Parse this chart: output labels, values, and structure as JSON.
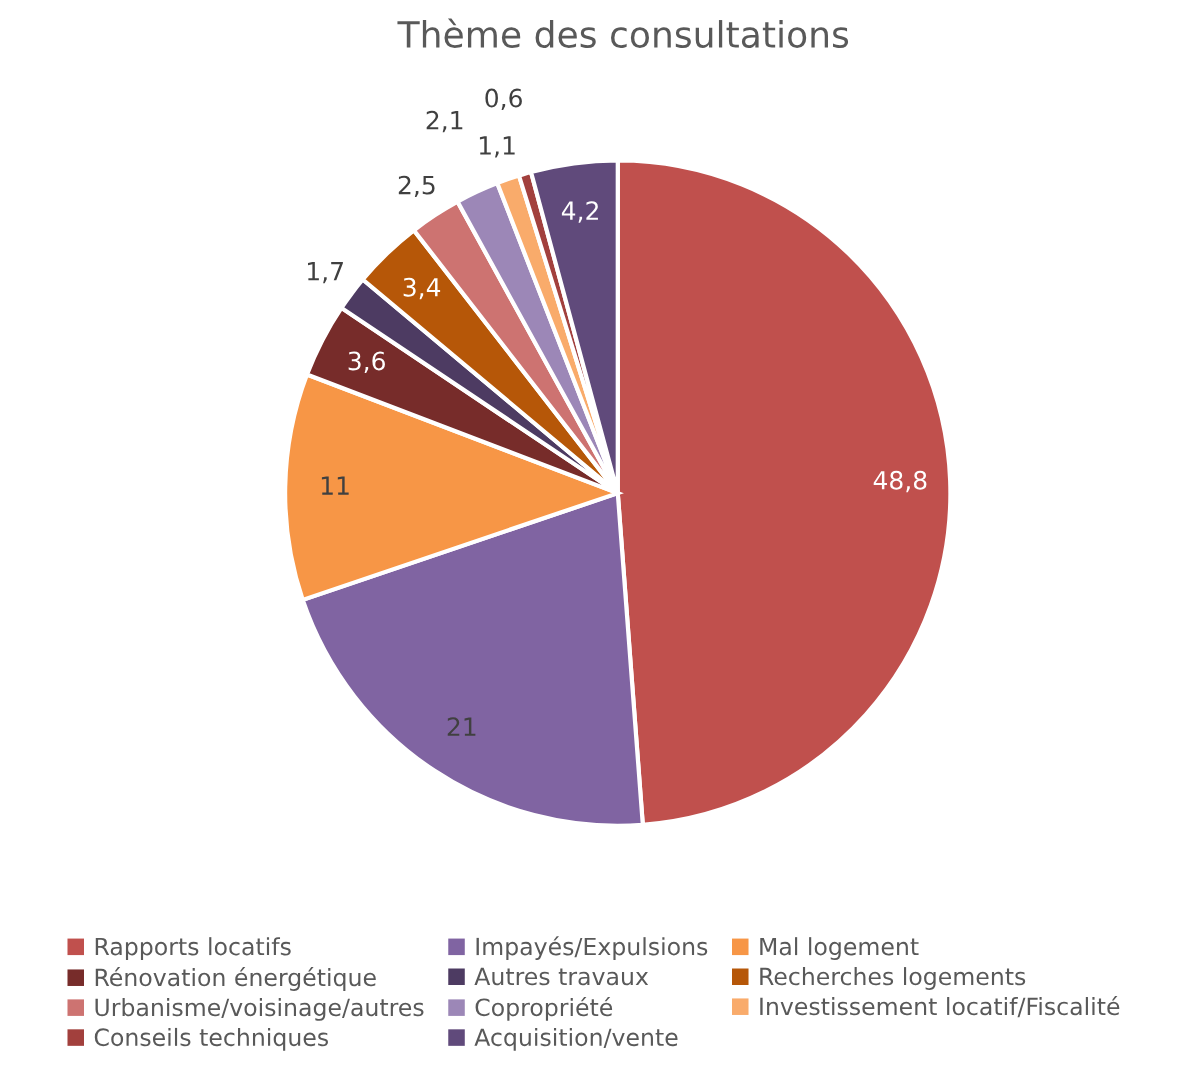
{
  "chart_data": {
    "type": "pie",
    "title": "Thème des consultations",
    "categories": [
      "Rapports locatifs",
      "Impayés/Expulsions",
      "Mal logement",
      "Rénovation énergétique",
      "Autres travaux",
      "Recherches logements",
      "Urbanisme/voisinage/autres",
      "Copropriété",
      "Investissement locatif/Fiscalité",
      "Conseils techniques",
      "Acquisition/vente"
    ],
    "values": [
      48.8,
      21,
      11,
      3.6,
      1.7,
      3.4,
      2.5,
      2.1,
      1.1,
      0.6,
      4.2
    ],
    "colors": [
      "#c0504d",
      "#8064a2",
      "#f79646",
      "#772c2a",
      "#4d3b62",
      "#b65708",
      "#cd7371",
      "#9c87b7",
      "#f9ab6b",
      "#a2403d",
      "#604a7b"
    ],
    "value_labels": [
      "48,8",
      "21",
      "11",
      "3,6",
      "1,7",
      "3,4",
      "2,5",
      "2,1",
      "1,1",
      "0,6",
      "4,2"
    ],
    "legend": "bottom"
  }
}
